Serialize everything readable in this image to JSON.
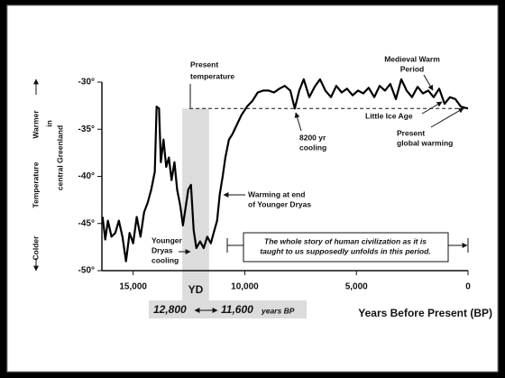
{
  "chart_data": {
    "type": "line",
    "y_label": [
      "Colder",
      "Temperature",
      "Warmer"
    ],
    "y_label_sub": [
      "in",
      "central Greenland"
    ],
    "x_label": "Years Before Present (BP)",
    "xlim": [
      16400,
      0
    ],
    "ylim": [
      -50,
      -30
    ],
    "xticks": [
      {
        "value": 15000,
        "label": "15,000"
      },
      {
        "value": 10000,
        "label": "10,000"
      },
      {
        "value": 5000,
        "label": "5,000"
      },
      0
    ],
    "yticks": [
      {
        "value": -30,
        "label": "-30°"
      },
      {
        "value": -35,
        "label": "-35°"
      },
      {
        "value": -40,
        "label": "-40°"
      },
      {
        "value": -45,
        "label": "-45°"
      },
      {
        "value": -50,
        "label": "-50°"
      }
    ],
    "series": [
      {
        "color": "#000000",
        "x": [
          16370,
          16250,
          16130,
          15970,
          15800,
          15640,
          15480,
          15320,
          15160,
          15000,
          14840,
          14670,
          14510,
          14350,
          14190,
          14030,
          13950,
          13840,
          13760,
          13640,
          13520,
          13400,
          13280,
          13150,
          13030,
          12890,
          12770,
          12650,
          12530,
          12410,
          12290,
          12170,
          12000,
          11840,
          11680,
          11520,
          11360,
          11240,
          11120,
          10990,
          10870,
          10710,
          10550,
          10390,
          10150,
          9900,
          9660,
          9420,
          9180,
          8930,
          8690,
          8450,
          8210,
          7960,
          7760,
          7560,
          7360,
          7110,
          6870,
          6630,
          6390,
          6140,
          5900,
          5660,
          5420,
          5170,
          4930,
          4690,
          4450,
          4200,
          3960,
          3720,
          3480,
          3230,
          2990,
          2750,
          2510,
          2260,
          2020,
          1780,
          1540,
          1290,
          1050,
          810,
          570,
          320,
          0
        ],
        "values": [
          -44.3,
          -46.7,
          -44.7,
          -46.4,
          -46.0,
          -44.7,
          -46.4,
          -49.0,
          -46.0,
          -47.1,
          -44.3,
          -46.4,
          -43.8,
          -42.8,
          -41.4,
          -39.5,
          -32.6,
          -32.8,
          -38.5,
          -36.1,
          -39.0,
          -38.0,
          -40.4,
          -38.5,
          -41.4,
          -43.1,
          -45.2,
          -43.3,
          -41.4,
          -40.9,
          -45.7,
          -47.6,
          -46.9,
          -47.6,
          -46.4,
          -47.1,
          -45.7,
          -44.7,
          -41.9,
          -40.0,
          -38.0,
          -36.1,
          -35.5,
          -34.7,
          -33.5,
          -32.6,
          -32.0,
          -31.1,
          -30.9,
          -30.9,
          -31.1,
          -30.7,
          -30.4,
          -30.9,
          -32.8,
          -30.9,
          -29.7,
          -31.6,
          -30.5,
          -29.7,
          -30.9,
          -31.6,
          -30.4,
          -31.1,
          -30.7,
          -31.4,
          -30.9,
          -31.2,
          -30.6,
          -31.6,
          -30.4,
          -30.9,
          -30.2,
          -31.8,
          -29.7,
          -30.9,
          -31.6,
          -30.5,
          -31.2,
          -30.9,
          -31.6,
          -30.7,
          -32.3,
          -31.6,
          -31.8,
          -32.6,
          -32.8
        ]
      }
    ],
    "reference_line": {
      "value": -32.8,
      "lines": [
        "Present",
        "temperature"
      ]
    },
    "band": {
      "label": "YD",
      "start": 12800,
      "end": 11600,
      "start_label": "12,800",
      "end_label": "11,600",
      "unit": "years BP"
    },
    "annotations": [
      {
        "lines": [
          "Medieval Warm",
          "Period"
        ]
      },
      {
        "lines": [
          "Little Ice Age"
        ]
      },
      {
        "lines": [
          "Present",
          "global warming"
        ]
      },
      {
        "lines": [
          "8200 yr",
          "cooling"
        ]
      },
      {
        "lines": [
          "Warming at end",
          "of Younger Dryas"
        ]
      },
      {
        "lines": [
          "Younger",
          "Dryas",
          "cooling"
        ]
      },
      {
        "lines": [
          "The whole story of human civilization as it is",
          "taught to us supposedly unfolds in this period."
        ]
      }
    ]
  }
}
